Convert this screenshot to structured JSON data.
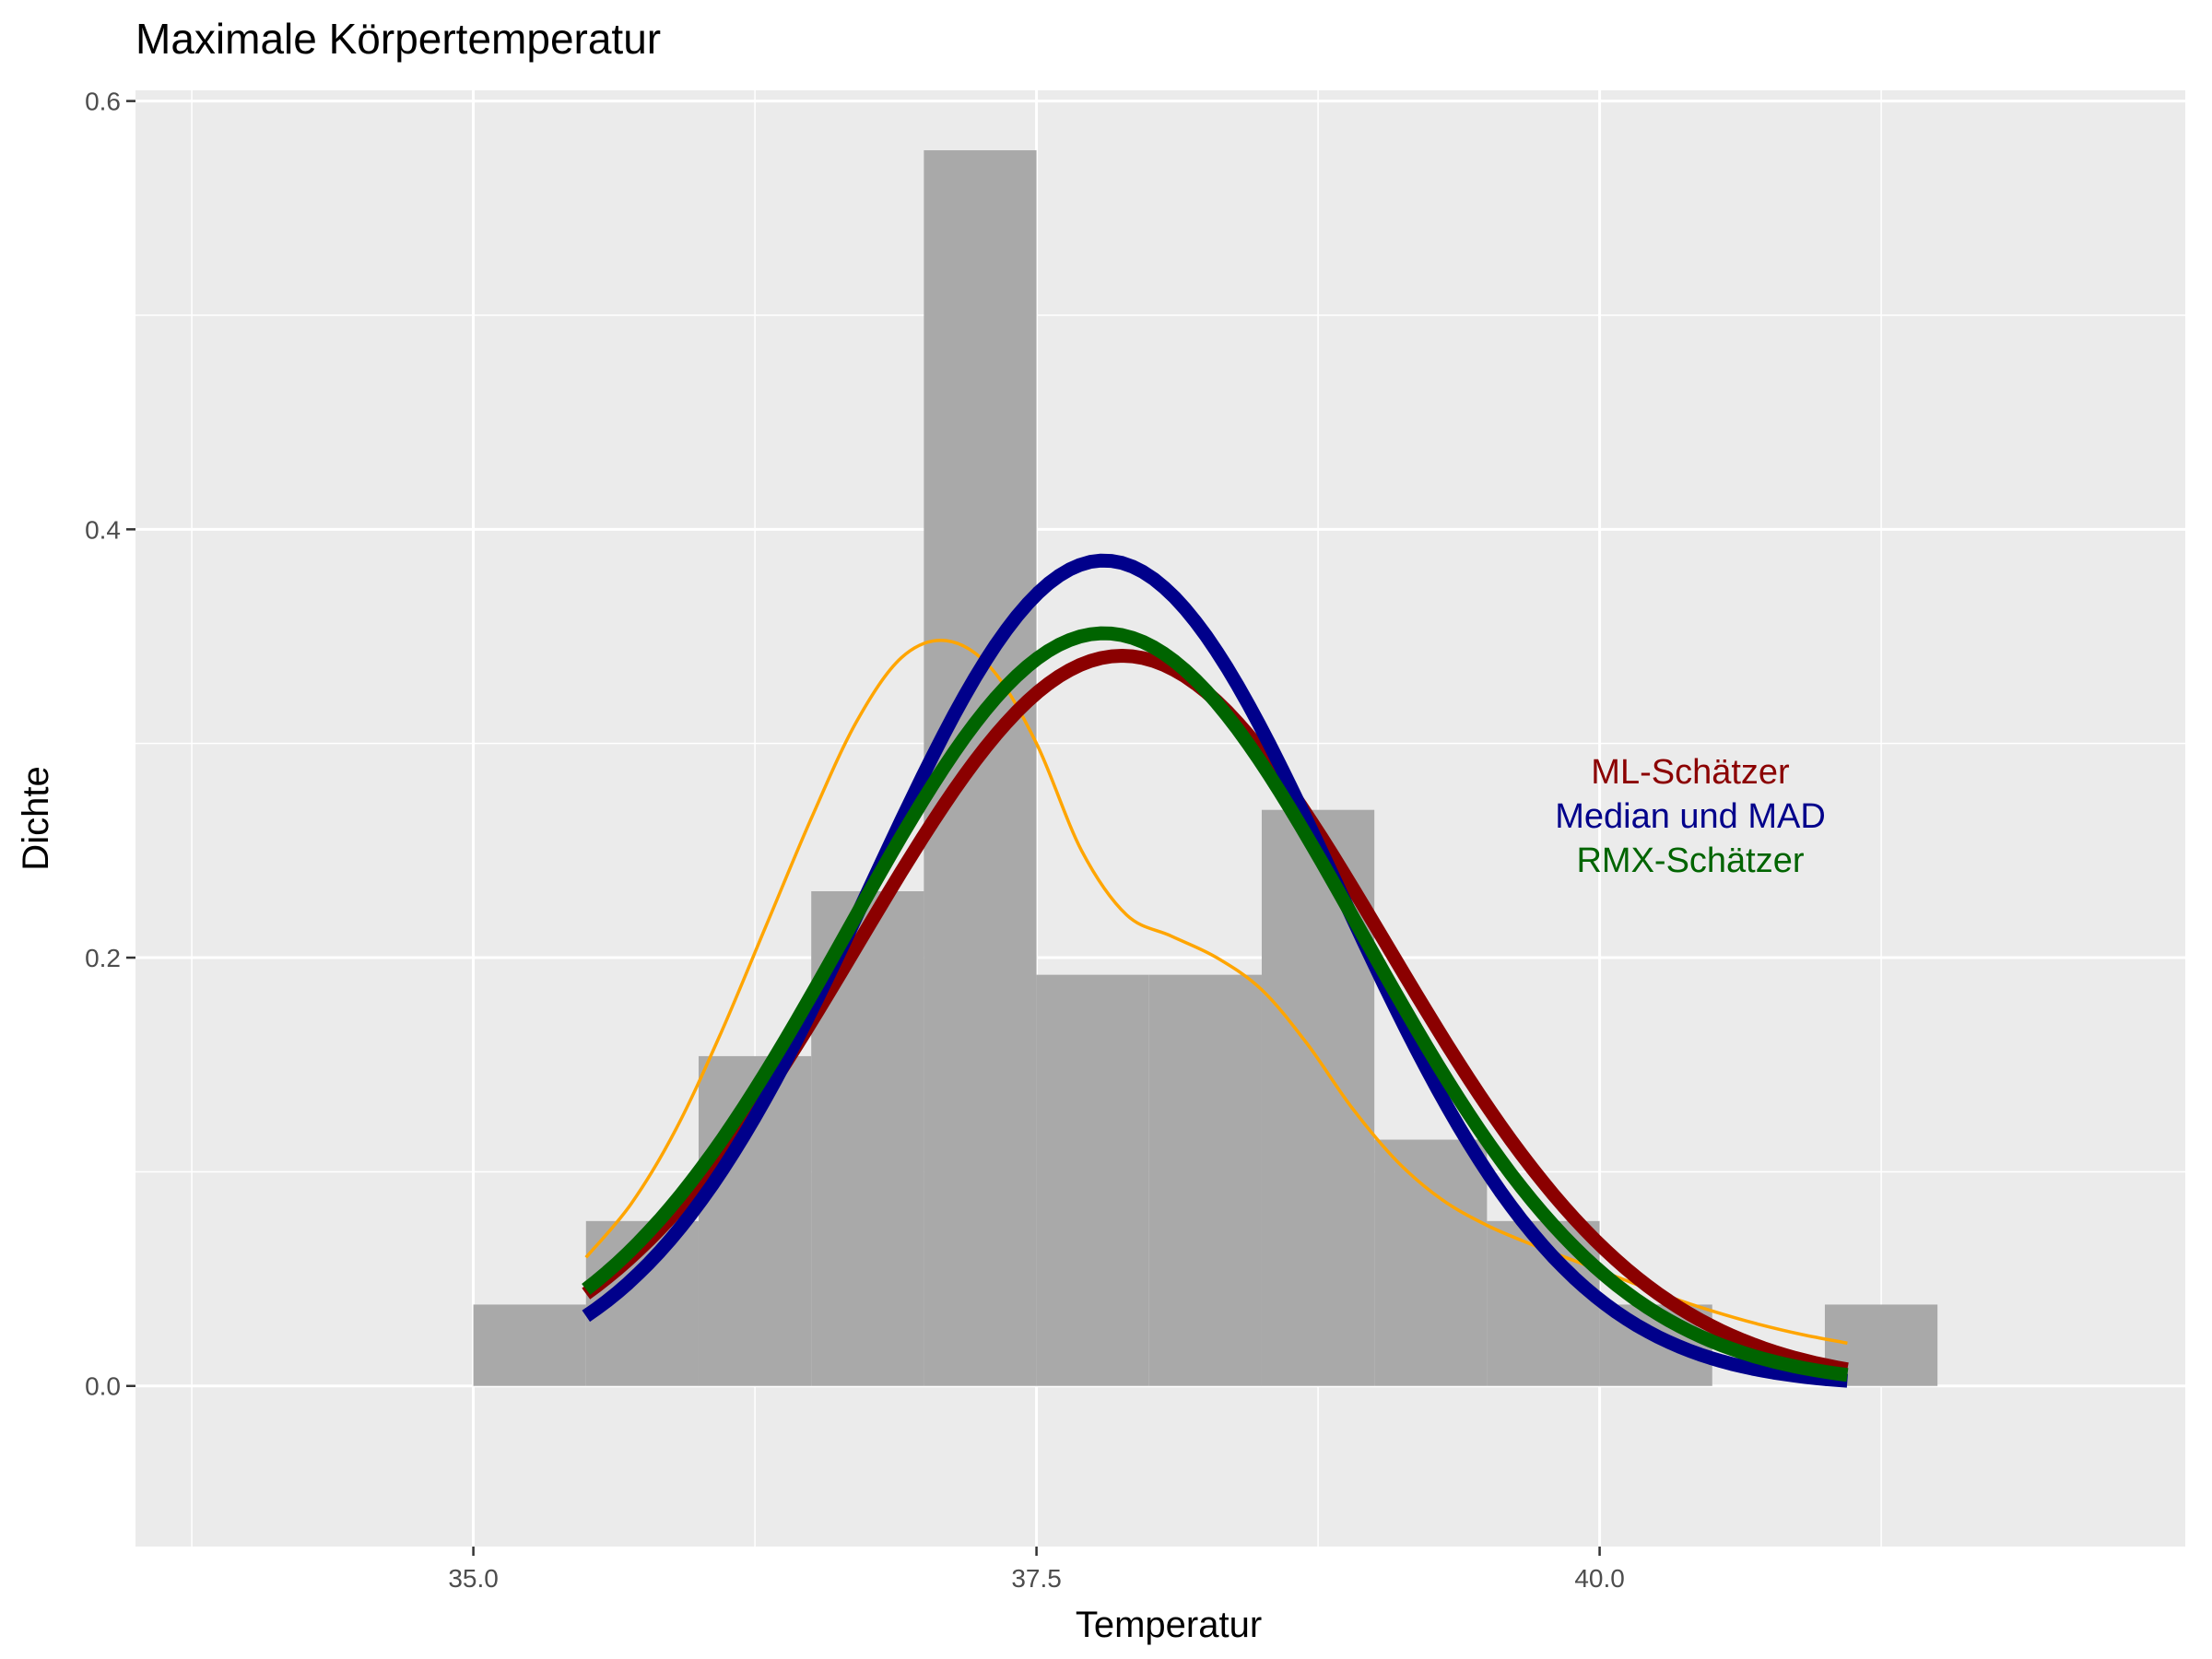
{
  "chart_data": {
    "type": "bar",
    "title": "Maximale Körpertemperatur",
    "xlabel": "Temperatur",
    "ylabel": "Dichte",
    "xlim": [
      33.5,
      42.6
    ],
    "ylim": [
      -0.075,
      0.605
    ],
    "x_ticks": [
      35.0,
      37.5,
      40.0
    ],
    "x_tick_labels": [
      "35.0",
      "37.5",
      "40.0"
    ],
    "y_ticks": [
      0.0,
      0.2,
      0.4,
      0.6
    ],
    "y_tick_labels": [
      "0.0",
      "0.2",
      "0.4",
      "0.6"
    ],
    "grid": true,
    "background": "#ebebeb",
    "histogram": {
      "color": "#a9a9a9",
      "bins": [
        {
          "x0": 35.0,
          "x1": 35.5,
          "density": 0.038
        },
        {
          "x0": 35.5,
          "x1": 36.0,
          "density": 0.077
        },
        {
          "x0": 36.0,
          "x1": 36.5,
          "density": 0.154
        },
        {
          "x0": 36.5,
          "x1": 37.0,
          "density": 0.231
        },
        {
          "x0": 37.0,
          "x1": 37.5,
          "density": 0.577
        },
        {
          "x0": 37.5,
          "x1": 38.0,
          "density": 0.192
        },
        {
          "x0": 38.0,
          "x1": 38.5,
          "density": 0.192
        },
        {
          "x0": 38.5,
          "x1": 39.0,
          "density": 0.269
        },
        {
          "x0": 39.0,
          "x1": 39.5,
          "density": 0.115
        },
        {
          "x0": 39.5,
          "x1": 40.0,
          "density": 0.077
        },
        {
          "x0": 40.0,
          "x1": 40.5,
          "density": 0.038
        },
        {
          "x0": 40.5,
          "x1": 41.0,
          "density": 0.0
        },
        {
          "x0": 41.0,
          "x1": 41.5,
          "density": 0.038
        }
      ]
    },
    "series": [
      {
        "name": "ML-Schätzer",
        "kind": "normal",
        "mean": 37.88,
        "sd": 1.17,
        "color": "#8b0000",
        "x_range": [
          35.5,
          41.1
        ]
      },
      {
        "name": "Median und MAD",
        "kind": "normal",
        "mean": 37.8,
        "sd": 1.035,
        "color": "#00008b",
        "x_range": [
          35.5,
          41.1
        ]
      },
      {
        "name": "RMX-Schätzer",
        "kind": "normal",
        "mean": 37.8,
        "sd": 1.135,
        "color": "#006400",
        "x_range": [
          35.5,
          41.1
        ]
      },
      {
        "name": "",
        "kind": "density",
        "color": "#ffa500",
        "x": [
          35.5,
          35.7,
          35.9,
          36.1,
          36.3,
          36.5,
          36.7,
          36.9,
          37.1,
          37.3,
          37.5,
          37.7,
          37.9,
          38.1,
          38.3,
          38.5,
          38.7,
          38.9,
          39.1,
          39.3,
          39.5,
          39.7,
          39.9,
          40.1,
          40.3,
          40.5,
          40.7,
          40.9,
          41.1
        ],
        "y": [
          0.06,
          0.085,
          0.12,
          0.165,
          0.215,
          0.265,
          0.31,
          0.34,
          0.348,
          0.335,
          0.3,
          0.25,
          0.22,
          0.21,
          0.2,
          0.185,
          0.16,
          0.13,
          0.105,
          0.087,
          0.075,
          0.066,
          0.058,
          0.05,
          0.042,
          0.035,
          0.029,
          0.024,
          0.02
        ]
      }
    ],
    "legend": {
      "placement": "right",
      "entries": [
        {
          "label": "ML-Schätzer",
          "color": "#8b0000"
        },
        {
          "label": "Median und MAD",
          "color": "#00008b"
        },
        {
          "label": "RMX-Schätzer",
          "color": "#006400"
        }
      ]
    }
  }
}
